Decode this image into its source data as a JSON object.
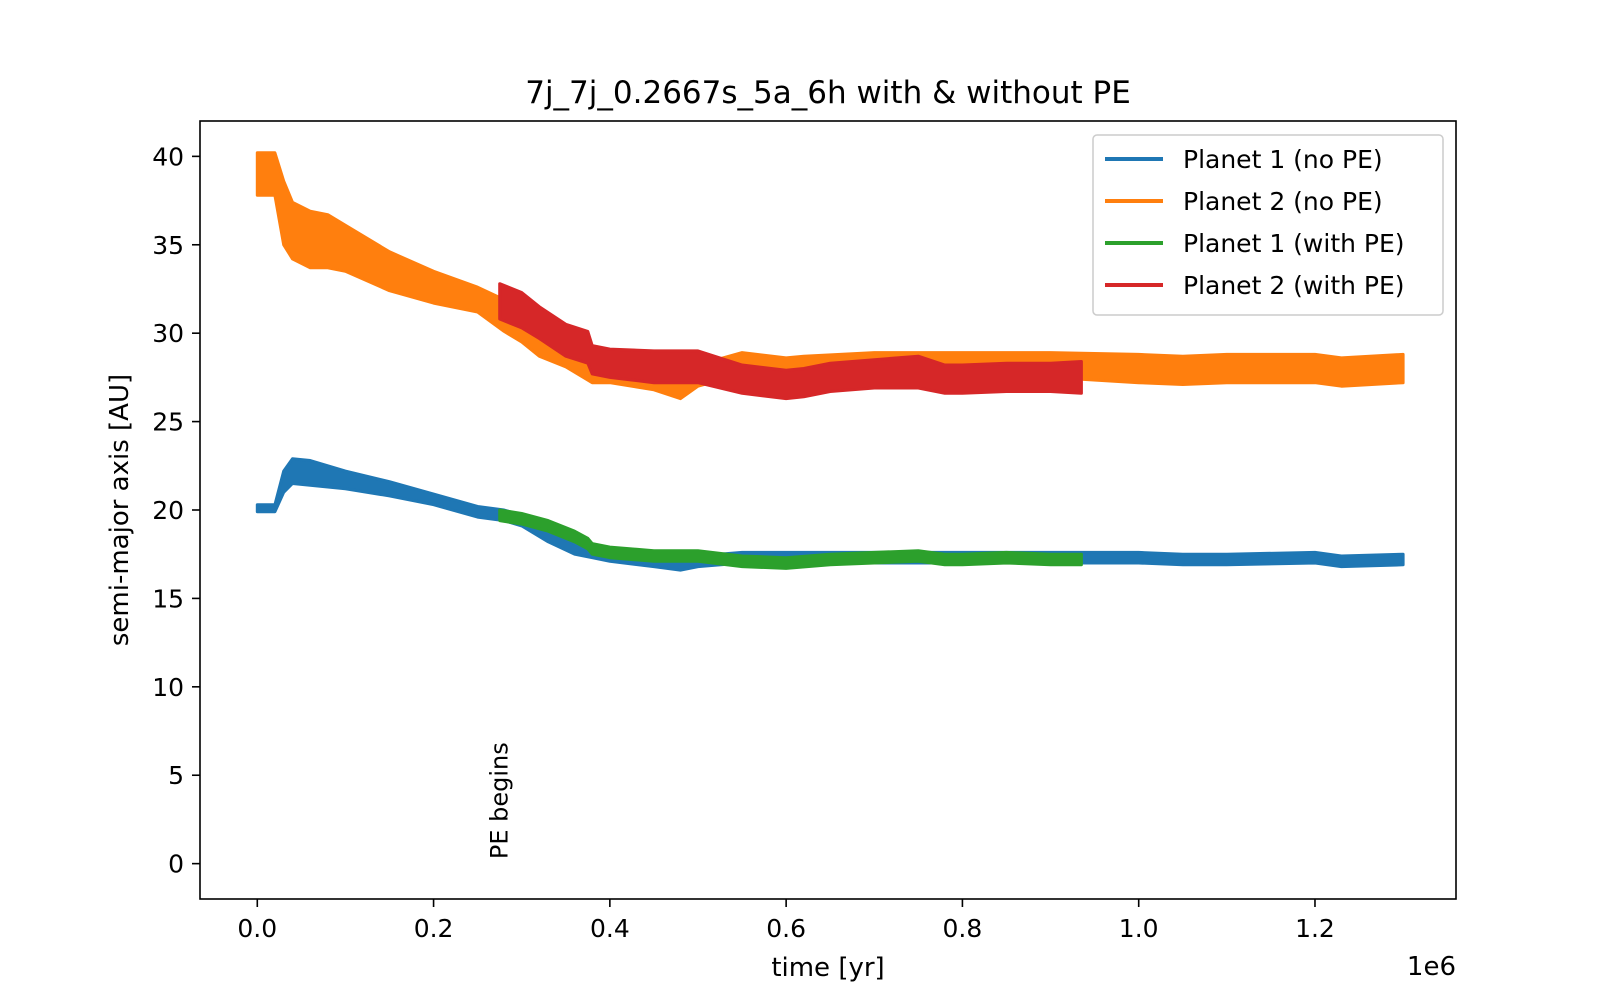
{
  "chart_data": {
    "type": "line",
    "title": "7j_7j_0.2667s_5a_6h with & without PE",
    "xlabel": "time [yr]",
    "ylabel": "semi-major axis [AU]",
    "x_offset_label": "1e6",
    "xlim": [
      -0.065,
      1.36
    ],
    "ylim": [
      -2,
      42
    ],
    "x_ticks": [
      0.0,
      0.2,
      0.4,
      0.6,
      0.8,
      1.0,
      1.2
    ],
    "x_tick_labels": [
      "0.0",
      "0.2",
      "0.4",
      "0.6",
      "0.8",
      "1.0",
      "1.2"
    ],
    "y_ticks": [
      0,
      5,
      10,
      15,
      20,
      25,
      30,
      35,
      40
    ],
    "y_tick_labels": [
      "0",
      "5",
      "10",
      "15",
      "20",
      "25",
      "30",
      "35",
      "40"
    ],
    "grid": false,
    "legend_position": "top-right",
    "annotation": {
      "text": "PE begins",
      "x": 0.275,
      "y": 1.5,
      "rotation": -90
    },
    "series": [
      {
        "name": "Planet 1 (no PE)",
        "color": "#1f77b4",
        "x": [
          0.0,
          0.01,
          0.02,
          0.03,
          0.04,
          0.06,
          0.08,
          0.1,
          0.15,
          0.2,
          0.25,
          0.28,
          0.3,
          0.33,
          0.36,
          0.38,
          0.4,
          0.45,
          0.48,
          0.5,
          0.55,
          0.6,
          0.65,
          0.7,
          0.8,
          0.9,
          1.0,
          1.05,
          1.1,
          1.2,
          1.23,
          1.3
        ],
        "y": [
          20.1,
          20.1,
          20.1,
          21.6,
          22.2,
          22.1,
          21.9,
          21.7,
          21.2,
          20.6,
          19.9,
          19.7,
          19.4,
          18.5,
          17.8,
          17.6,
          17.4,
          17.1,
          16.9,
          17.1,
          17.3,
          17.3,
          17.3,
          17.3,
          17.3,
          17.3,
          17.3,
          17.2,
          17.2,
          17.3,
          17.1,
          17.2
        ],
        "band": [
          0.2,
          0.2,
          0.2,
          0.6,
          0.7,
          0.7,
          0.6,
          0.5,
          0.4,
          0.3,
          0.3,
          0.3,
          0.3,
          0.3,
          0.3,
          0.3,
          0.3,
          0.3,
          0.3,
          0.3,
          0.3,
          0.3,
          0.3,
          0.3,
          0.3,
          0.3,
          0.3,
          0.3,
          0.3,
          0.3,
          0.3,
          0.3
        ]
      },
      {
        "name": "Planet 2 (no PE)",
        "color": "#ff7f0e",
        "x": [
          0.0,
          0.02,
          0.03,
          0.04,
          0.06,
          0.08,
          0.1,
          0.15,
          0.2,
          0.25,
          0.28,
          0.3,
          0.32,
          0.35,
          0.38,
          0.4,
          0.45,
          0.48,
          0.5,
          0.55,
          0.6,
          0.62,
          0.7,
          0.8,
          0.9,
          1.0,
          1.05,
          1.1,
          1.2,
          1.23,
          1.3
        ],
        "y": [
          39.0,
          39.0,
          36.8,
          35.8,
          35.3,
          35.2,
          34.8,
          33.5,
          32.6,
          31.9,
          31.0,
          30.2,
          29.3,
          28.6,
          27.6,
          27.6,
          27.2,
          26.7,
          27.6,
          28.3,
          28.0,
          28.1,
          28.2,
          28.2,
          28.2,
          28.0,
          27.9,
          28.0,
          28.0,
          27.8,
          28.0
        ],
        "band": [
          1.2,
          1.2,
          1.8,
          1.6,
          1.6,
          1.5,
          1.3,
          1.1,
          0.9,
          0.7,
          0.9,
          0.7,
          0.6,
          0.5,
          0.4,
          0.4,
          0.4,
          0.4,
          0.6,
          0.6,
          0.6,
          0.6,
          0.7,
          0.7,
          0.7,
          0.8,
          0.8,
          0.8,
          0.8,
          0.8,
          0.8
        ]
      },
      {
        "name": "Planet 1 (with PE)",
        "color": "#2ca02c",
        "x": [
          0.275,
          0.3,
          0.33,
          0.36,
          0.375,
          0.38,
          0.4,
          0.45,
          0.5,
          0.55,
          0.6,
          0.65,
          0.7,
          0.75,
          0.78,
          0.8,
          0.85,
          0.9,
          0.935
        ],
        "y": [
          19.7,
          19.5,
          19.1,
          18.5,
          18.1,
          17.8,
          17.6,
          17.4,
          17.4,
          17.1,
          17.0,
          17.2,
          17.3,
          17.4,
          17.2,
          17.2,
          17.3,
          17.2,
          17.2
        ],
        "band": [
          0.3,
          0.3,
          0.3,
          0.3,
          0.3,
          0.3,
          0.3,
          0.3,
          0.3,
          0.3,
          0.3,
          0.3,
          0.3,
          0.3,
          0.3,
          0.3,
          0.3,
          0.3,
          0.3
        ]
      },
      {
        "name": "Planet 2 (with PE)",
        "color": "#d62728",
        "x": [
          0.275,
          0.3,
          0.32,
          0.35,
          0.375,
          0.38,
          0.4,
          0.45,
          0.5,
          0.55,
          0.6,
          0.62,
          0.65,
          0.7,
          0.75,
          0.78,
          0.8,
          0.85,
          0.9,
          0.935
        ],
        "y": [
          31.8,
          31.3,
          30.6,
          29.6,
          29.2,
          28.5,
          28.3,
          28.1,
          28.1,
          27.4,
          27.1,
          27.2,
          27.5,
          27.7,
          27.8,
          27.4,
          27.4,
          27.5,
          27.5,
          27.5
        ],
        "band": [
          1.0,
          1.0,
          0.9,
          0.9,
          0.9,
          0.8,
          0.8,
          0.9,
          0.9,
          0.8,
          0.8,
          0.8,
          0.8,
          0.8,
          0.9,
          0.8,
          0.8,
          0.8,
          0.8,
          0.9
        ]
      }
    ]
  }
}
